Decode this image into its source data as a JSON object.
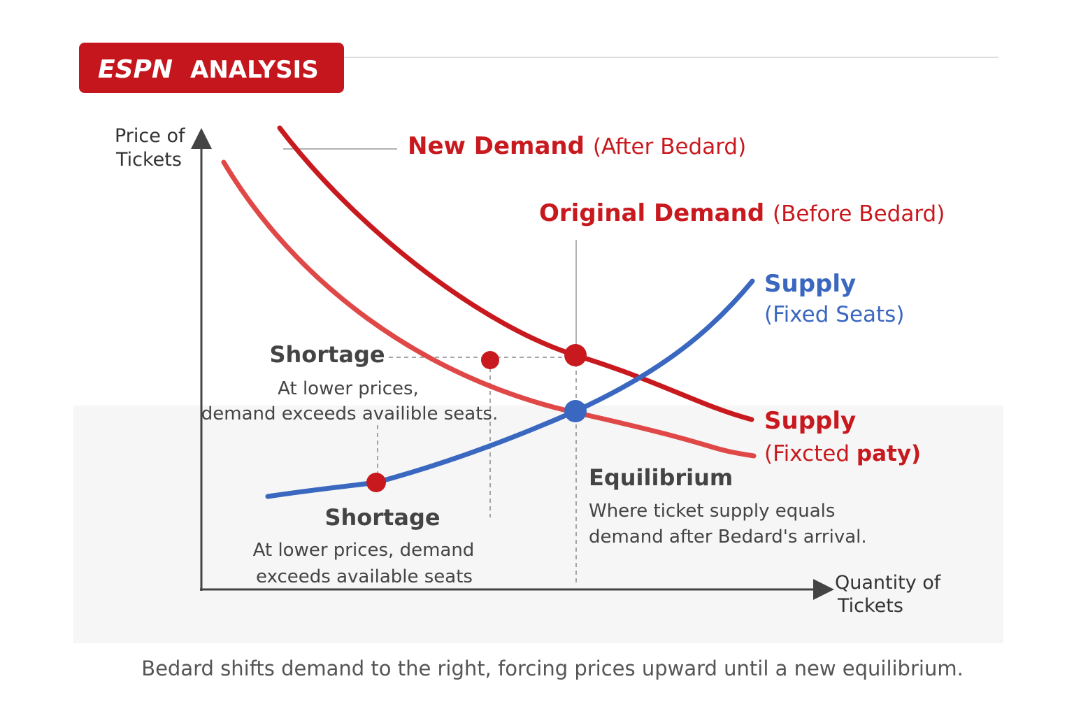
{
  "header": {
    "logo": "ESPN",
    "title": "ANALYSIS"
  },
  "axes": {
    "y_label": [
      "Price of",
      "Tickets"
    ],
    "x_label": [
      "Quantity of",
      "Tickets"
    ]
  },
  "curves": {
    "new_demand": {
      "name": "New Demand",
      "note": "(After Bedard)"
    },
    "original_demand": {
      "name": "Original Demand",
      "note": "(Before Bedard)"
    },
    "supply_blue": {
      "name": "Supply",
      "note": "(Fixed Seats)"
    },
    "supply_red": {
      "name": "Supply",
      "note": "(Fixcted",
      "note_bold": "paty)"
    }
  },
  "annotations": {
    "shortage_upper": {
      "title": "Shortage",
      "lines": [
        "At lower prices,",
        "demand exceeds availible seats."
      ]
    },
    "equilibrium": {
      "title": "Equilibrium",
      "lines": [
        "Where ticket supply equals",
        "demand after Bedard's arrival."
      ]
    },
    "shortage_lower": {
      "title": "Shortage",
      "lines": [
        "At lower prices, demand",
        "exceeds available seats"
      ]
    }
  },
  "caption": "Bedard shifts demand to the right, forcing prices upward until a new equilibrium."
}
